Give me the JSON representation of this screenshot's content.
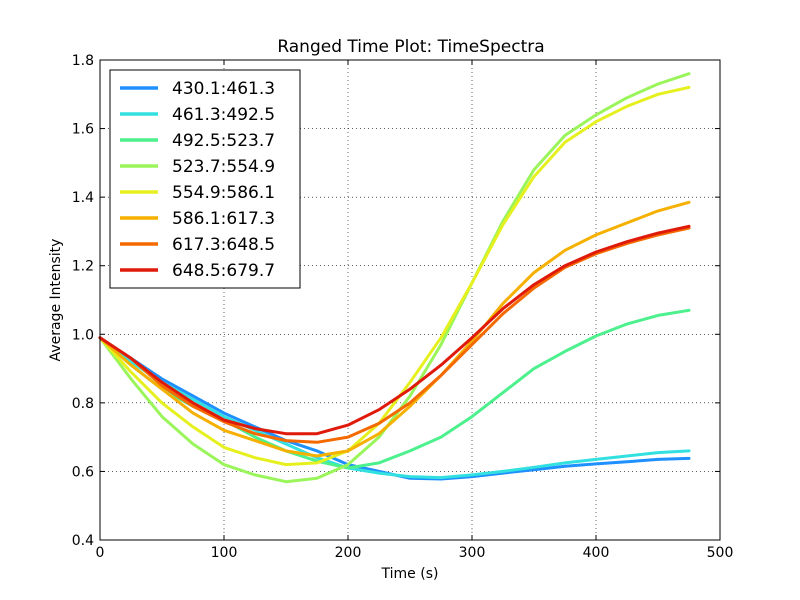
{
  "chart_data": {
    "type": "line",
    "title": "Ranged Time Plot: TimeSpectra",
    "xlabel": "Time (s)",
    "ylabel": "Average Intensity",
    "xlim": [
      0,
      500
    ],
    "ylim": [
      0.4,
      1.8
    ],
    "xticks": [
      0,
      100,
      200,
      300,
      400,
      500
    ],
    "xtick_labels": [
      "0",
      "100",
      "200",
      "300",
      "400",
      "500"
    ],
    "yticks": [
      0.4,
      0.6,
      0.8,
      1.0,
      1.2,
      1.4,
      1.6,
      1.8
    ],
    "ytick_labels": [
      "0.4",
      "0.6",
      "0.8",
      "1.0",
      "1.2",
      "1.4",
      "1.6",
      "1.8"
    ],
    "grid": true,
    "legend_position": "top-left",
    "x": [
      0,
      25,
      50,
      75,
      100,
      125,
      150,
      175,
      200,
      225,
      250,
      275,
      300,
      325,
      350,
      375,
      400,
      425,
      450,
      475
    ],
    "series": [
      {
        "name": "430.1:461.3",
        "color": "#1e90ff",
        "values": [
          0.99,
          0.93,
          0.87,
          0.82,
          0.77,
          0.73,
          0.69,
          0.66,
          0.62,
          0.6,
          0.58,
          0.578,
          0.585,
          0.595,
          0.605,
          0.615,
          0.622,
          0.628,
          0.635,
          0.638
        ]
      },
      {
        "name": "461.3:492.5",
        "color": "#33e0e0",
        "values": [
          0.99,
          0.92,
          0.86,
          0.81,
          0.76,
          0.72,
          0.68,
          0.64,
          0.61,
          0.595,
          0.585,
          0.582,
          0.59,
          0.6,
          0.612,
          0.625,
          0.635,
          0.645,
          0.655,
          0.66
        ]
      },
      {
        "name": "492.5:523.7",
        "color": "#4cf08c",
        "values": [
          0.99,
          0.91,
          0.84,
          0.79,
          0.75,
          0.7,
          0.66,
          0.63,
          0.61,
          0.625,
          0.66,
          0.7,
          0.76,
          0.83,
          0.9,
          0.95,
          0.995,
          1.03,
          1.055,
          1.07
        ]
      },
      {
        "name": "523.7:554.9",
        "color": "#9af55a",
        "values": [
          0.99,
          0.87,
          0.76,
          0.68,
          0.62,
          0.59,
          0.57,
          0.58,
          0.62,
          0.7,
          0.82,
          0.97,
          1.15,
          1.33,
          1.48,
          1.58,
          1.64,
          1.69,
          1.73,
          1.76
        ]
      },
      {
        "name": "554.9:586.1",
        "color": "#e6f01e",
        "values": [
          0.99,
          0.89,
          0.8,
          0.73,
          0.67,
          0.64,
          0.62,
          0.625,
          0.66,
          0.74,
          0.86,
          0.99,
          1.15,
          1.32,
          1.46,
          1.56,
          1.62,
          1.665,
          1.7,
          1.72
        ]
      },
      {
        "name": "586.1:617.3",
        "color": "#f5b000",
        "values": [
          0.99,
          0.91,
          0.84,
          0.77,
          0.72,
          0.69,
          0.66,
          0.645,
          0.66,
          0.71,
          0.79,
          0.88,
          0.98,
          1.09,
          1.18,
          1.245,
          1.29,
          1.325,
          1.36,
          1.385
        ]
      },
      {
        "name": "617.3:648.5",
        "color": "#f56a00",
        "values": [
          0.99,
          0.93,
          0.85,
          0.79,
          0.745,
          0.71,
          0.69,
          0.685,
          0.7,
          0.74,
          0.8,
          0.88,
          0.97,
          1.06,
          1.135,
          1.195,
          1.235,
          1.265,
          1.29,
          1.31
        ]
      },
      {
        "name": "648.5:679.7",
        "color": "#e01a0a",
        "values": [
          0.99,
          0.93,
          0.86,
          0.8,
          0.75,
          0.725,
          0.71,
          0.71,
          0.735,
          0.78,
          0.84,
          0.91,
          0.99,
          1.075,
          1.145,
          1.2,
          1.24,
          1.27,
          1.295,
          1.315
        ]
      }
    ]
  }
}
